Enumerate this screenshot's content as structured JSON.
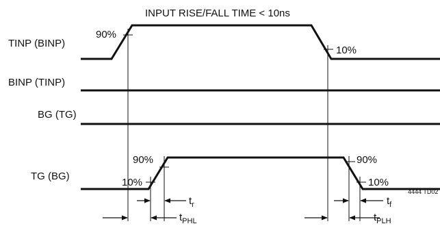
{
  "title": "INPUT RISE/FALL TIME < 10ns",
  "signals": {
    "tinp": "TINP (BINP)",
    "binp": "BINP (TINP)",
    "bg": "BG (TG)",
    "tg": "TG (BG)"
  },
  "levels": {
    "in_90": "90%",
    "in_10": "10%",
    "out_90_rise": "90%",
    "out_10_rise": "10%",
    "out_90_fall": "90%",
    "out_10_fall": "10%"
  },
  "timing": {
    "tr": {
      "main": "t",
      "sub": "r"
    },
    "tf": {
      "main": "t",
      "sub": "f"
    },
    "tphl": {
      "main": "t",
      "sub": "PHL"
    },
    "tplh": {
      "main": "t",
      "sub": "PLH"
    }
  },
  "figure_id": "4444 TD02"
}
